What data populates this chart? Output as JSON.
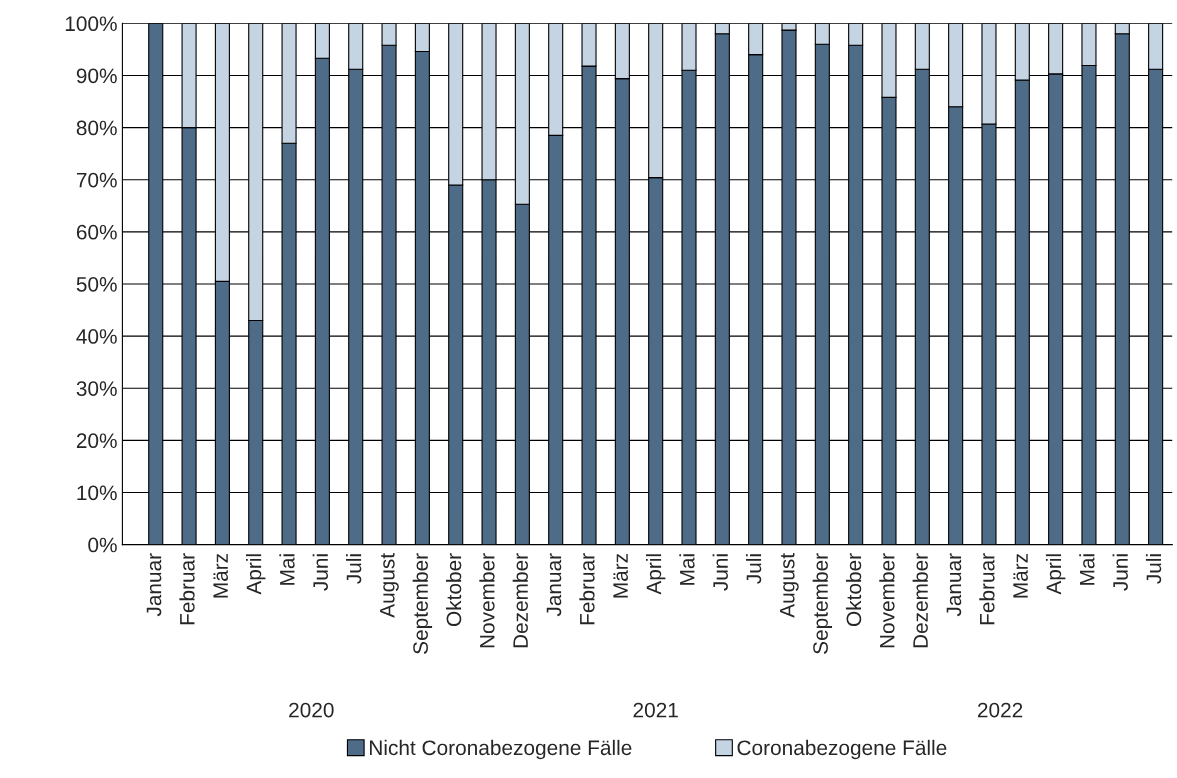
{
  "chart_data": {
    "type": "bar",
    "stacked": true,
    "categories": [
      "Januar",
      "Februar",
      "März",
      "April",
      "Mai",
      "Juni",
      "Juli",
      "August",
      "September",
      "Oktober",
      "November",
      "Dezember",
      "Januar",
      "Februar",
      "März",
      "April",
      "Mai",
      "Juni",
      "Juli",
      "August",
      "September",
      "Oktober",
      "November",
      "Dezember",
      "Januar",
      "Februar",
      "März",
      "April",
      "Mai",
      "Juni",
      "Juli"
    ],
    "series": [
      {
        "name": "Nicht Coronabezogene Fälle",
        "color": "#4e6b88",
        "values": [
          100,
          80,
          50.5,
          43,
          77,
          93.3,
          91.2,
          95.8,
          94.6,
          69,
          70,
          65.3,
          78.5,
          91.8,
          89.4,
          70.4,
          91,
          98,
          94,
          98.7,
          96,
          95.8,
          85.8,
          91.2,
          84,
          80.7,
          89.1,
          90.3,
          91.9,
          98,
          91.2
        ]
      },
      {
        "name": "Coronabezogene Fälle",
        "color": "#c4d4e3",
        "values": [
          null,
          20,
          49.5,
          57,
          23,
          6.7,
          8.8,
          4.2,
          5.4,
          31,
          30,
          34.7,
          21.5,
          8.2,
          10.6,
          29.6,
          9,
          2,
          6,
          1.3,
          4,
          4.2,
          14.2,
          8.8,
          16,
          19.3,
          10.9,
          9.7,
          8.1,
          2,
          8.8
        ]
      }
    ],
    "ylim": [
      0,
      100
    ],
    "yticks": [
      {
        "value": 0,
        "label": "0%"
      },
      {
        "value": 10,
        "label": "10%"
      },
      {
        "value": 20,
        "label": "20%"
      },
      {
        "value": 30,
        "label": "30%"
      },
      {
        "value": 40,
        "label": "40%"
      },
      {
        "value": 50,
        "label": "50%"
      },
      {
        "value": 60,
        "label": "60%"
      },
      {
        "value": 70,
        "label": "70%"
      },
      {
        "value": 80,
        "label": "80%"
      },
      {
        "value": 90,
        "label": "90%"
      },
      {
        "value": 100,
        "label": "100%"
      }
    ],
    "grid": "y",
    "legend": "bottom",
    "annotations": [
      "2020",
      "2021",
      "2022"
    ]
  }
}
